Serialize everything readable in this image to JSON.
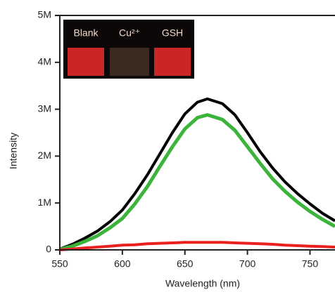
{
  "chart_data": {
    "type": "line",
    "x_label": "Wavelength (nm)",
    "y_label": "Intensity",
    "annotations": [
      "Blank",
      "Cu²⁺",
      "GSH"
    ],
    "x": [
      550,
      560,
      570,
      580,
      590,
      600,
      610,
      620,
      630,
      640,
      650,
      660,
      668,
      680,
      690,
      700,
      710,
      720,
      730,
      740,
      750,
      760,
      770
    ],
    "series": [
      {
        "color": "#000000",
        "values": [
          20000,
          120000,
          250000,
          400000,
          600000,
          850000,
          1200000,
          1600000,
          2050000,
          2500000,
          2900000,
          3150000,
          3220000,
          3120000,
          2880000,
          2500000,
          2100000,
          1750000,
          1450000,
          1200000,
          980000,
          780000,
          620000
        ]
      },
      {
        "color": "#3cb43c",
        "values": [
          10000,
          80000,
          180000,
          300000,
          470000,
          670000,
          980000,
          1350000,
          1780000,
          2200000,
          2580000,
          2820000,
          2880000,
          2780000,
          2550000,
          2200000,
          1850000,
          1520000,
          1250000,
          1020000,
          820000,
          650000,
          500000
        ]
      },
      {
        "color": "#e8201e",
        "values": [
          0,
          20000,
          40000,
          60000,
          80000,
          100000,
          110000,
          130000,
          140000,
          150000,
          160000,
          160000,
          160000,
          160000,
          150000,
          140000,
          130000,
          120000,
          100000,
          90000,
          80000,
          70000,
          60000
        ]
      }
    ],
    "xlim": [
      550,
      770
    ],
    "xticks": [
      550,
      600,
      650,
      700,
      750
    ],
    "ylim": [
      0,
      5000000
    ],
    "yticks": [
      0,
      {
        "value": 1000000,
        "label": "1M"
      },
      {
        "value": 2000000,
        "label": "2M"
      },
      {
        "value": 3000000,
        "label": "3M"
      },
      {
        "value": 4000000,
        "label": "4M"
      },
      {
        "value": 5000000,
        "label": "5M"
      }
    ]
  }
}
